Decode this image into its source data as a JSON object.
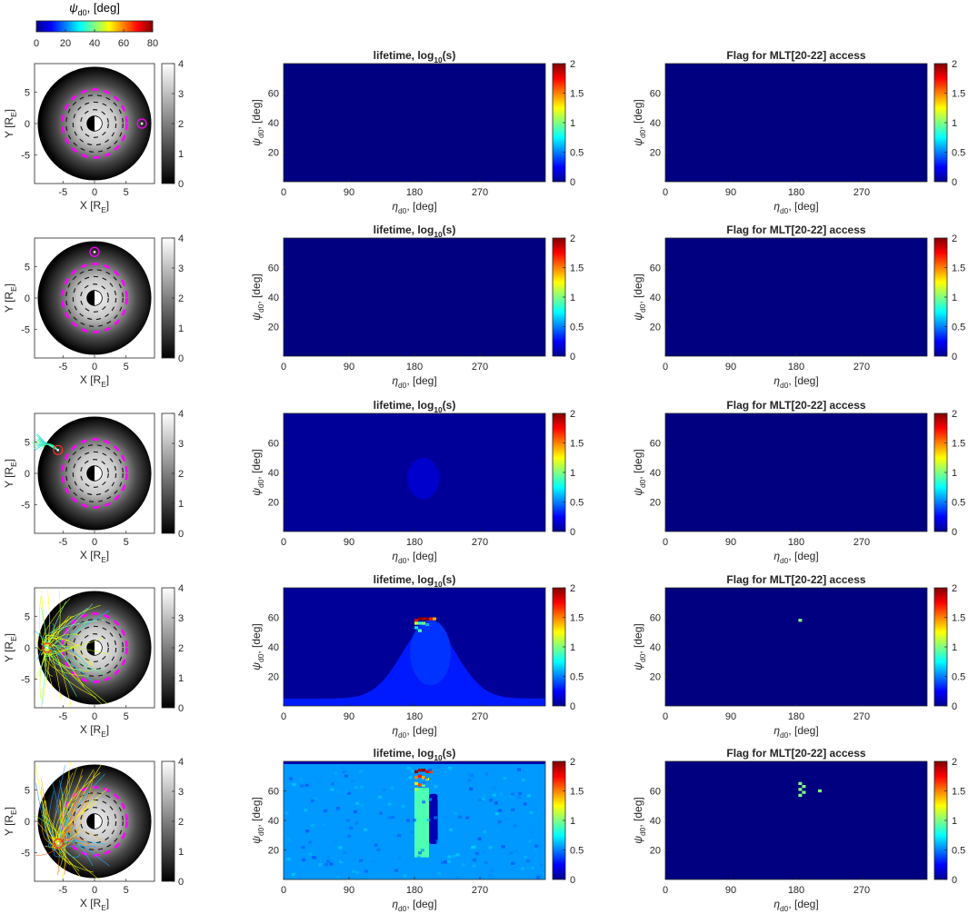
{
  "top_colorbar": {
    "label_symbol": "ψ",
    "label_sub": "d0",
    "label_suffix": ", [deg]",
    "ticks": [
      "0",
      "20",
      "40",
      "60",
      "80"
    ],
    "range": [
      0,
      80
    ],
    "colormap": "jet"
  },
  "map_panels": {
    "x_label": "X [R",
    "x_label_sub": "E",
    "x_label_end": "]",
    "y_label": "Y [R",
    "y_label_sub": "E",
    "y_label_end": "]",
    "x_ticks": [
      "-5",
      "0",
      "5"
    ],
    "y_ticks": [
      "5",
      "0",
      "-5"
    ],
    "colorbar_ticks": [
      "0",
      "1",
      "2",
      "3",
      "4"
    ],
    "colorbar_range": [
      0,
      4
    ],
    "colormap": "gray",
    "dash_color": "#ff00ff"
  },
  "grid_panels": {
    "x_label_symbol": "η",
    "x_label_sub": "d0",
    "x_label_suffix": ", [deg]",
    "y_label_symbol": "ψ",
    "y_label_sub": "d0",
    "y_label_suffix": ", [deg]",
    "x_ticks": [
      "0",
      "90",
      "180",
      "270"
    ],
    "y_ticks": [
      "60",
      "40",
      "20"
    ],
    "colorbar_ticks": [
      "0",
      "0.5",
      "1",
      "1.5",
      "2"
    ],
    "colorbar_range": [
      0,
      2
    ],
    "colormap": "jet",
    "lifetime_title": "lifetime, log",
    "lifetime_title_sub": "10",
    "lifetime_title_end": "(s)",
    "flag_title": "Flag for MLT[20-22] access"
  },
  "chart_data": [
    {
      "type": "heatmap",
      "row": 1,
      "panel": "map",
      "marker": {
        "x": 7.5,
        "y": 0
      },
      "trajectories": "none"
    },
    {
      "type": "heatmap",
      "row": 1,
      "panel": "lifetime",
      "xlim": [
        0,
        360
      ],
      "ylim": [
        0,
        80
      ],
      "uniform_value": 0,
      "features": []
    },
    {
      "type": "heatmap",
      "row": 1,
      "panel": "flag",
      "xlim": [
        0,
        360
      ],
      "ylim": [
        0,
        80
      ],
      "flagged_cells": []
    },
    {
      "type": "heatmap",
      "row": 2,
      "panel": "map",
      "marker": {
        "x": 0,
        "y": 7.3
      },
      "trajectories": "none"
    },
    {
      "type": "heatmap",
      "row": 2,
      "panel": "lifetime",
      "xlim": [
        0,
        360
      ],
      "ylim": [
        0,
        80
      ],
      "uniform_value": 0,
      "features": []
    },
    {
      "type": "heatmap",
      "row": 2,
      "panel": "flag",
      "xlim": [
        0,
        360
      ],
      "ylim": [
        0,
        80
      ],
      "flagged_cells": []
    },
    {
      "type": "heatmap",
      "row": 3,
      "panel": "map",
      "marker": {
        "x": -5.8,
        "y": 3.7
      },
      "trajectories": "fan"
    },
    {
      "type": "heatmap",
      "row": 3,
      "panel": "lifetime",
      "xlim": [
        0,
        360
      ],
      "ylim": [
        0,
        80
      ],
      "uniform_value": 0.05,
      "features": [
        {
          "kind": "blob",
          "cx": 192,
          "cy": 36,
          "rx": 22,
          "ry": 14,
          "value": 0.15
        }
      ]
    },
    {
      "type": "heatmap",
      "row": 3,
      "panel": "flag",
      "xlim": [
        0,
        360
      ],
      "ylim": [
        0,
        80
      ],
      "flagged_cells": []
    },
    {
      "type": "heatmap",
      "row": 4,
      "panel": "map",
      "marker": {
        "x": -7.5,
        "y": 0
      },
      "trajectories": "wide"
    },
    {
      "type": "heatmap",
      "row": 4,
      "panel": "lifetime",
      "xlim": [
        0,
        360
      ],
      "ylim": [
        0,
        80
      ],
      "uniform_value": 0.05,
      "features": [
        {
          "kind": "band",
          "amplitude": 50,
          "center": 200,
          "width": 75,
          "value": 0.3
        },
        {
          "kind": "blob",
          "cx": 202,
          "cy": 36,
          "rx": 28,
          "ry": 22,
          "value": 0.35
        },
        {
          "kind": "hot",
          "cells": [
            [
              180,
              57,
              1.8
            ],
            [
              185,
              58,
              2.0
            ],
            [
              190,
              58,
              1.9
            ],
            [
              195,
              58,
              2.0
            ],
            [
              200,
              58,
              1.7
            ],
            [
              205,
              58,
              1.4
            ],
            [
              180,
              55,
              1.2
            ],
            [
              185,
              55,
              0.8
            ],
            [
              190,
              55,
              1.0
            ],
            [
              195,
              54,
              0.6
            ],
            [
              180,
              52,
              0.7
            ],
            [
              185,
              50,
              0.9
            ]
          ]
        }
      ]
    },
    {
      "type": "heatmap",
      "row": 4,
      "panel": "flag",
      "xlim": [
        0,
        360
      ],
      "ylim": [
        0,
        80
      ],
      "flagged_cells": [
        [
          183,
          57
        ]
      ]
    },
    {
      "type": "heatmap",
      "row": 5,
      "panel": "map",
      "marker": {
        "x": -5.7,
        "y": -3.5
      },
      "trajectories": "dense"
    },
    {
      "type": "heatmap",
      "row": 5,
      "panel": "lifetime",
      "xlim": [
        0,
        360
      ],
      "ylim": [
        0,
        80
      ],
      "uniform_value": 0.55,
      "features": [
        {
          "kind": "column",
          "x0": 180,
          "x1": 200,
          "y0": 15,
          "y1": 62,
          "value": 0.9
        },
        {
          "kind": "dip",
          "x0": 200,
          "x1": 212,
          "y0": 24,
          "y1": 58,
          "value": 0.1
        },
        {
          "kind": "hot",
          "cells": [
            [
              180,
              72,
              2.0
            ],
            [
              185,
              73,
              1.9
            ],
            [
              190,
              73,
              2.0
            ],
            [
              195,
              72,
              1.8
            ],
            [
              200,
              72,
              1.6
            ],
            [
              180,
              68,
              1.5
            ],
            [
              185,
              69,
              1.7
            ],
            [
              190,
              68,
              1.4
            ],
            [
              195,
              67,
              1.2
            ],
            [
              180,
              64,
              1.3
            ],
            [
              185,
              63,
              1.6
            ],
            [
              190,
              63,
              1.0
            ],
            [
              180,
              60,
              1.1
            ],
            [
              185,
              59,
              0.9
            ]
          ]
        }
      ]
    },
    {
      "type": "heatmap",
      "row": 5,
      "panel": "flag",
      "xlim": [
        0,
        360
      ],
      "ylim": [
        0,
        80
      ],
      "flagged_cells": [
        [
          183,
          64
        ],
        [
          188,
          62
        ],
        [
          183,
          60
        ],
        [
          188,
          58
        ],
        [
          183,
          56
        ],
        [
          210,
          59
        ]
      ]
    }
  ]
}
